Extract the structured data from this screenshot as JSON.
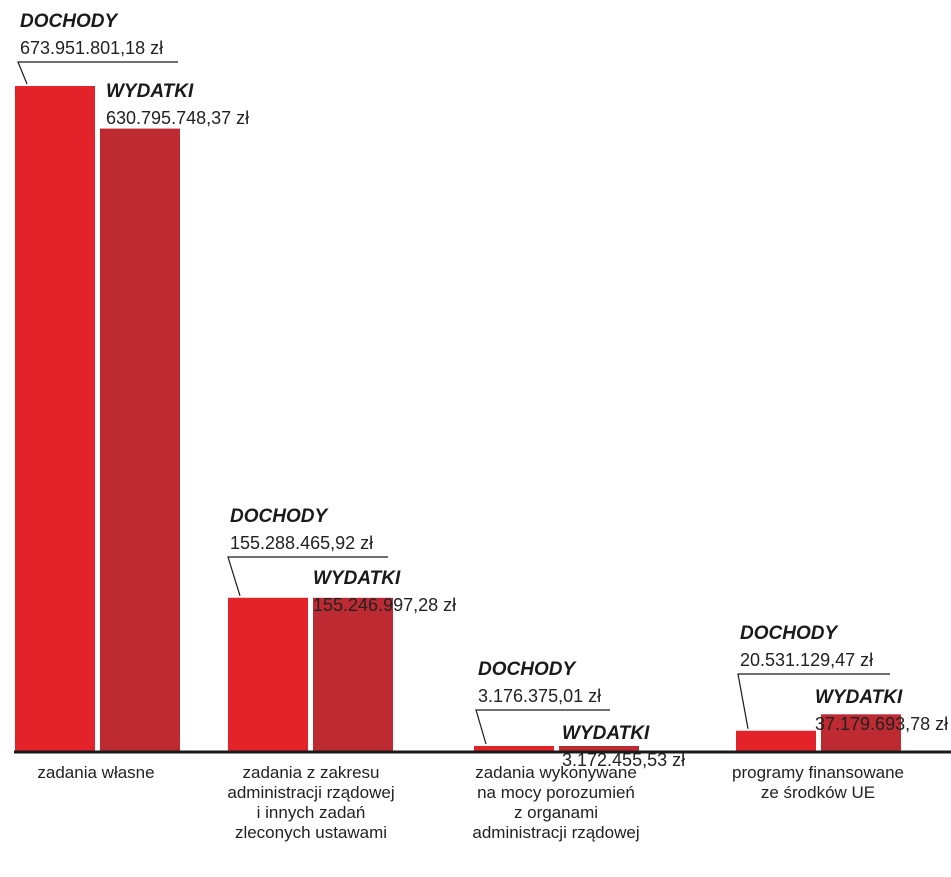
{
  "chart_data": {
    "type": "bar",
    "title": "",
    "xlabel": "",
    "ylabel": "",
    "ylim": [
      0,
      680000000
    ],
    "grid": false,
    "legend": "none",
    "categories": [
      [
        "zadania własne"
      ],
      [
        "zadania z zakresu",
        "administracji rządowej",
        "i innych zadań",
        "zleconych ustawami"
      ],
      [
        "zadania wykonywane",
        "na mocy porozumień",
        "z organami",
        "administracji rządowej"
      ],
      [
        "programy finansowane",
        "ze środków UE"
      ]
    ],
    "series": [
      {
        "name": "DOCHODY",
        "color": "#e32229",
        "values": [
          673951801.18,
          155288465.92,
          3176375.01,
          20531129.47
        ],
        "labels": [
          "673.951.801,18 zł",
          "155.288.465,92 zł",
          "3.176.375,01 zł",
          "20.531.129,47 zł"
        ]
      },
      {
        "name": "WYDATKI",
        "color": "#be2a31",
        "values": [
          630795748.37,
          155246997.28,
          3172455.53,
          37179693.78
        ],
        "labels": [
          "630.795.748,37 zł",
          "155.246.997,28 zł",
          "3.172.455,53 zł",
          "37.179.693,78 zł"
        ]
      }
    ]
  }
}
